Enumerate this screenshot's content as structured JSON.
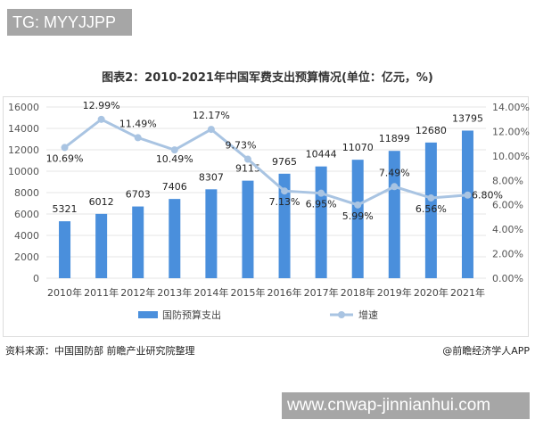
{
  "watermark_top": "TG: MYYJJPP",
  "watermark_bottom": "www.cnwap-jinnianhui.com",
  "source": "资料来源：中国国防部 前瞻产业研究院整理",
  "credit": "@前瞻经济学人APP",
  "chart_data": {
    "type": "bar+line",
    "title": "图表2：2010-2021年中国军费支出预算情况(单位：亿元，%)",
    "categories": [
      "2010年",
      "2011年",
      "2012年",
      "2013年",
      "2014年",
      "2015年",
      "2016年",
      "2017年",
      "2018年",
      "2019年",
      "2020年",
      "2021年"
    ],
    "series": [
      {
        "name": "国防预算支出",
        "type": "bar",
        "axis": "left",
        "color": "#4a8fdc",
        "values": [
          5321,
          6012,
          6703,
          7406,
          8307,
          9115,
          9765,
          10444,
          11070,
          11899,
          12680,
          13795
        ]
      },
      {
        "name": "增速",
        "type": "line",
        "axis": "right",
        "color": "#a9c4e2",
        "values": [
          10.69,
          12.99,
          11.49,
          10.49,
          12.17,
          9.73,
          7.13,
          6.95,
          5.99,
          7.49,
          6.56,
          6.8
        ]
      }
    ],
    "yleft": {
      "lim": [
        0,
        16000
      ],
      "ticks": [
        "0",
        "2000",
        "4000",
        "6000",
        "8000",
        "10000",
        "12000",
        "14000",
        "16000"
      ]
    },
    "yright": {
      "lim": [
        0,
        14
      ],
      "ticks": [
        "0.00%",
        "2.00%",
        "4.00%",
        "6.00%",
        "8.00%",
        "10.00%",
        "12.00%",
        "14.00%"
      ]
    },
    "grid": true,
    "legend": "bottom"
  }
}
